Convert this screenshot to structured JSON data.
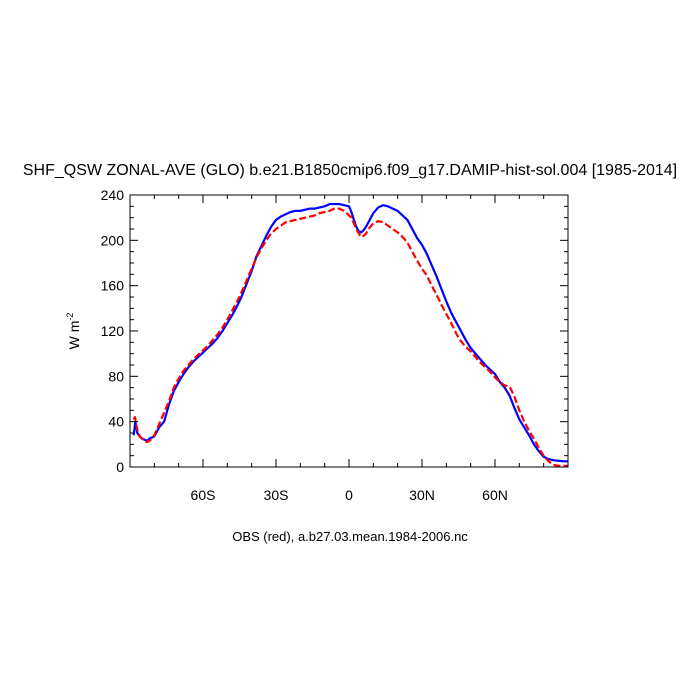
{
  "chart_data": {
    "type": "line",
    "title": "SHF_QSW ZONAL-AVE (GLO) b.e21.B1850cmip6.f09_g17.DAMIP-hist-sol.004 [1985-2014]",
    "ylabel_base": "W m",
    "ylabel_exp": "-2",
    "xlabel": "OBS (red), a.b27.03.mean.1984-2006.nc",
    "xlim": [
      -90,
      90
    ],
    "ylim": [
      0,
      240
    ],
    "xticks": [
      {
        "value": -60,
        "label": "60S"
      },
      {
        "value": -30,
        "label": "30S"
      },
      {
        "value": 0,
        "label": "0"
      },
      {
        "value": 30,
        "label": "30N"
      },
      {
        "value": 60,
        "label": "60N"
      }
    ],
    "yticks": [
      {
        "value": 0,
        "label": "0"
      },
      {
        "value": 40,
        "label": "40"
      },
      {
        "value": 80,
        "label": "80"
      },
      {
        "value": 120,
        "label": "120"
      },
      {
        "value": 160,
        "label": "160"
      },
      {
        "value": 200,
        "label": "200"
      },
      {
        "value": 240,
        "label": "240"
      }
    ],
    "series": [
      {
        "color": "#0000ff",
        "dash": "solid",
        "x": [
          -88.5,
          -87.8,
          -87,
          -86,
          -85,
          -84,
          -83,
          -82,
          -81,
          -80,
          -78,
          -76,
          -74,
          -72,
          -70,
          -68,
          -66,
          -64,
          -62,
          -60,
          -58,
          -56,
          -54,
          -52,
          -50,
          -48,
          -46,
          -44,
          -42,
          -40,
          -38,
          -36,
          -34,
          -32,
          -30,
          -28,
          -26,
          -24,
          -22,
          -20,
          -18,
          -16,
          -14,
          -12,
          -10,
          -8,
          -6,
          -4,
          -2,
          0,
          1,
          2,
          3,
          4,
          5,
          6,
          7,
          8,
          10,
          12,
          14,
          16,
          18,
          20,
          22,
          24,
          26,
          28,
          30,
          32,
          34,
          36,
          38,
          40,
          42,
          44,
          46,
          48,
          50,
          52,
          54,
          56,
          58,
          60,
          62,
          64,
          66,
          68,
          70,
          72,
          74,
          76,
          78,
          80,
          82,
          84,
          86,
          88,
          90
        ],
        "y": [
          28,
          40,
          30,
          27,
          25,
          24,
          23,
          25,
          26,
          27,
          35,
          40,
          55,
          67,
          75,
          82,
          88,
          93,
          97,
          101,
          105,
          109,
          114,
          120,
          127,
          134,
          142,
          151,
          162,
          173,
          186,
          195,
          204,
          212,
          218,
          221,
          223,
          225,
          226,
          226,
          227,
          228,
          228,
          229,
          230,
          232,
          232,
          232,
          231,
          230,
          225,
          218,
          212,
          208,
          207,
          209,
          212,
          216,
          224,
          229,
          231,
          230,
          228,
          226,
          222,
          218,
          210,
          202,
          196,
          188,
          178,
          168,
          157,
          146,
          136,
          128,
          120,
          112,
          105,
          100,
          95,
          90,
          86,
          82,
          75,
          70,
          63,
          52,
          42,
          35,
          28,
          20,
          14,
          9,
          7,
          6,
          5.5,
          5,
          5
        ]
      },
      {
        "color": "#ff0000",
        "dash": "dashed",
        "x": [
          -88.5,
          -88,
          -87,
          -86,
          -85,
          -84,
          -83,
          -82,
          -81,
          -80,
          -78,
          -76,
          -74,
          -72,
          -70,
          -68,
          -66,
          -64,
          -62,
          -60,
          -58,
          -56,
          -54,
          -52,
          -50,
          -48,
          -46,
          -44,
          -42,
          -40,
          -38,
          -36,
          -34,
          -32,
          -30,
          -28,
          -26,
          -24,
          -22,
          -20,
          -18,
          -16,
          -14,
          -12,
          -10,
          -8,
          -6,
          -4,
          -2,
          0,
          1,
          2,
          3,
          4,
          5,
          6,
          7,
          8,
          10,
          12,
          14,
          16,
          18,
          20,
          22,
          24,
          26,
          28,
          30,
          32,
          34,
          36,
          38,
          40,
          42,
          44,
          46,
          48,
          50,
          52,
          54,
          56,
          58,
          60,
          62,
          64,
          66,
          68,
          70,
          72,
          74,
          76,
          78,
          80,
          82,
          84,
          86,
          88,
          90
        ],
        "y": [
          42,
          44,
          33,
          27,
          25,
          23,
          22,
          23,
          25,
          28,
          38,
          48,
          58,
          70,
          78,
          85,
          90,
          95,
          99,
          103,
          107,
          112,
          117,
          123,
          130,
          138,
          146,
          155,
          165,
          175,
          185,
          193,
          200,
          206,
          210,
          213,
          216,
          217,
          218,
          219,
          220,
          221,
          222,
          224,
          225,
          226,
          228,
          228,
          226,
          222,
          220,
          215,
          210,
          206,
          203,
          204,
          206,
          210,
          215,
          217,
          216,
          213,
          210,
          207,
          203,
          198,
          190,
          182,
          175,
          169,
          160,
          152,
          143,
          135,
          127,
          118,
          111,
          106,
          102,
          97,
          92,
          88,
          84,
          79,
          75,
          72,
          71,
          62,
          50,
          40,
          32,
          25,
          17,
          10,
          5,
          2,
          1,
          1,
          1
        ]
      }
    ]
  }
}
